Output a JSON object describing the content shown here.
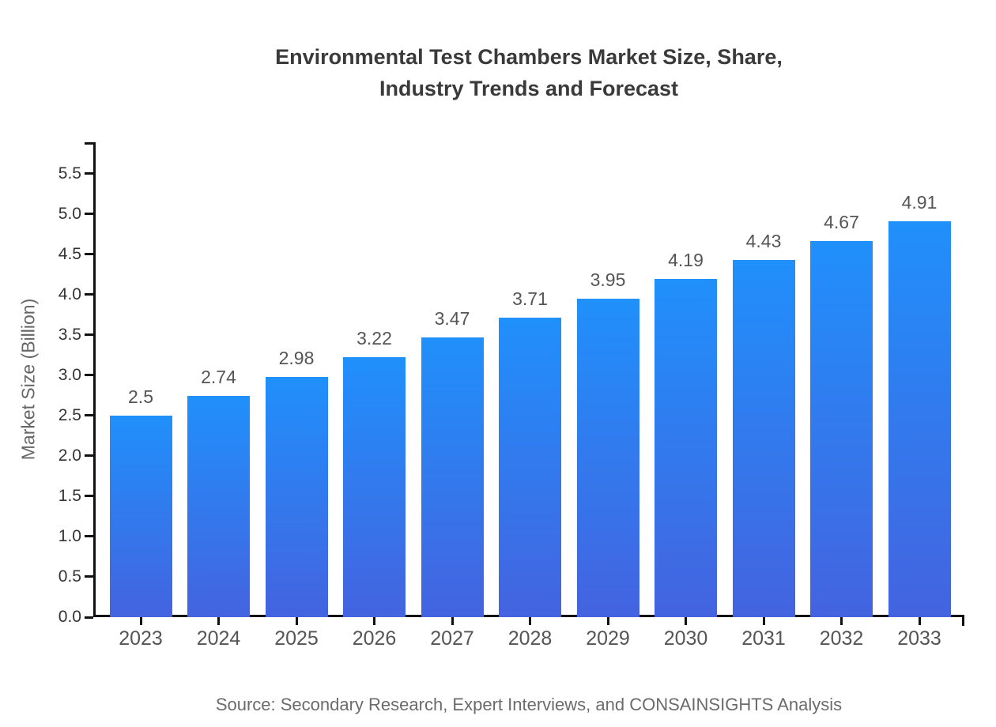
{
  "header": {
    "title_line1": "Environmental Test Chambers Market Size, Share,",
    "title_line2": "Industry Trends and Forecast"
  },
  "footer": {
    "source_text": "Source: Secondary Research, Expert Interviews, and CONSAINSIGHTS Analysis"
  },
  "chart_data": {
    "type": "bar",
    "title": "Environmental Test Chambers Market Size, Share, Industry Trends and Forecast",
    "categories": [
      "2023",
      "2024",
      "2025",
      "2026",
      "2027",
      "2028",
      "2029",
      "2030",
      "2031",
      "2032",
      "2033"
    ],
    "values": [
      2.5,
      2.74,
      2.98,
      3.22,
      3.47,
      3.71,
      3.95,
      4.19,
      4.43,
      4.67,
      4.91
    ],
    "value_labels": [
      "2.5",
      "2.74",
      "2.98",
      "3.22",
      "3.47",
      "3.71",
      "3.95",
      "4.19",
      "4.43",
      "4.67",
      "4.91"
    ],
    "xlabel": "",
    "ylabel": "Market Size (Billion)",
    "ylim": [
      0,
      5.89
    ],
    "yticks": [
      0.0,
      0.5,
      1.0,
      1.5,
      2.0,
      2.5,
      3.0,
      3.5,
      4.0,
      4.5,
      5.0,
      5.5
    ],
    "ytick_labels": [
      "0.0",
      "0.5",
      "1.0",
      "1.5",
      "2.0",
      "2.5",
      "3.0",
      "3.5",
      "4.0",
      "4.5",
      "5.0",
      "5.5"
    ],
    "grid": false,
    "legend": false,
    "source": "Source: Secondary Research, Expert Interviews, and CONSAINSIGHTS Analysis",
    "colors": {
      "bar_gradient_top": "#2090fb",
      "bar_gradient_bottom": "#4463e0",
      "axis": "#111111",
      "title_text": "#3a3a3a",
      "ytick_label": "#333333",
      "xtick_label": "#555555",
      "value_label": "#555555",
      "ylabel_text": "#666666",
      "source_text": "#6b6b6b"
    }
  }
}
